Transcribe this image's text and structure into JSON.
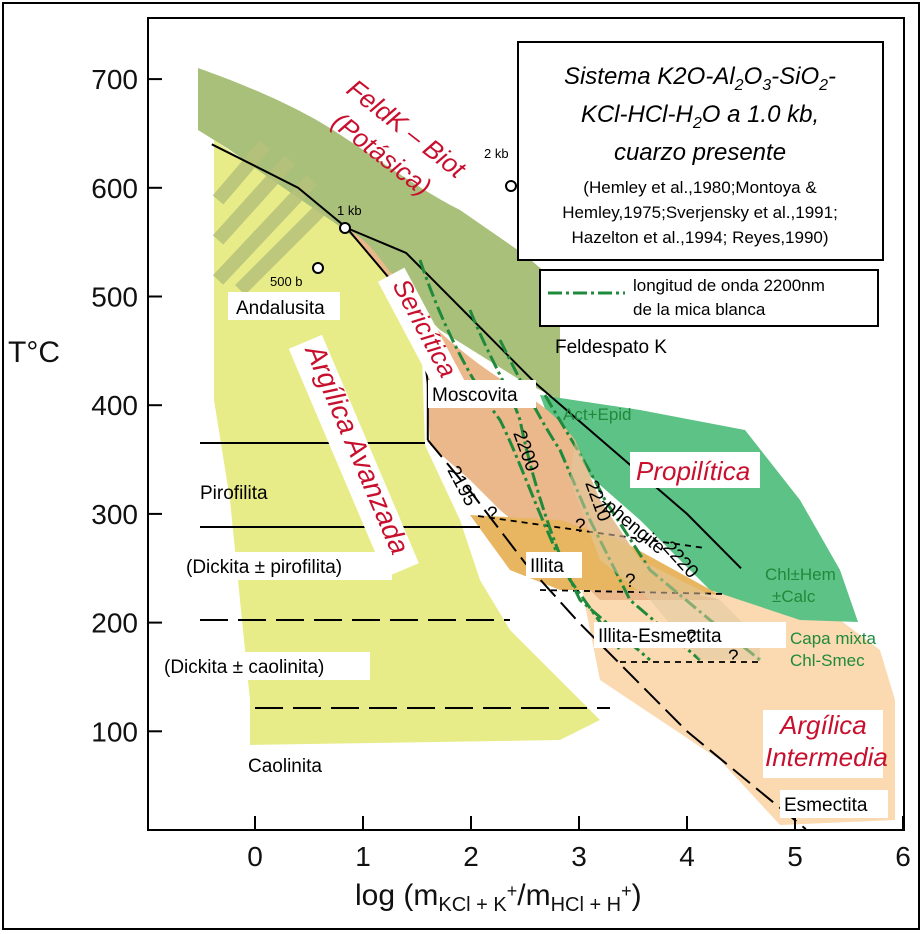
{
  "chart_data": {
    "type": "area",
    "title_lines": [
      "Sistema K2O-Al2O3-SiO2-",
      "KCl-HCl-H2O a 1.0 kb,",
      "cuarzo presente"
    ],
    "references": [
      "(Hemley et al.,1980;Montoya &",
      "Hemley,1975;Sverjensky et al.,1991;",
      "Hazelton et al.,1994; Reyes,1990)"
    ],
    "ylabel": "T°C",
    "xlabel": "log (mKCl + K+/mHCl + H+)",
    "xlim": [
      -1,
      6
    ],
    "ylim": [
      0,
      750
    ],
    "x_ticks": [
      "0",
      "1",
      "2",
      "3",
      "4",
      "5",
      "6"
    ],
    "y_ticks": [
      "100",
      "200",
      "300",
      "400",
      "500",
      "600",
      "700"
    ],
    "legend": {
      "label_line1": "longitud de onda 2200nm",
      "label_line2": "de la mica blanca",
      "color": "#1f8a3c"
    },
    "zones": [
      {
        "name": "FeldK – Biot",
        "name2": "(Potásica)",
        "color": "#a9c07a"
      },
      {
        "name": "Sericítica",
        "color": "#eab88a"
      },
      {
        "name": "Argílica Avanzada",
        "color": "#e8ec88"
      },
      {
        "name": "Propilítica",
        "color": "#5cc285"
      },
      {
        "name": "Argílica",
        "name2": "Intermedia",
        "color": "#fbd9b1"
      }
    ],
    "minerals": [
      "Andalusita",
      "Feldespato K",
      "Moscovita",
      "Pirofilita",
      "(Dickita ± pirofilita)",
      "(Dickita ± caolinita)",
      "Caolinita",
      "Illita",
      "Illita-Esmectita",
      "Esmectita"
    ],
    "green_labels": [
      "Act+Epid",
      "Chl±Hem",
      "±Calc",
      "Capa mixta",
      "Chl-Smec"
    ],
    "wavelength_labels": [
      "2195",
      "2200",
      "2210",
      "2220",
      "phengite"
    ],
    "pressure_labels": [
      "2 kb",
      "1 kb",
      "500 b"
    ],
    "question_marks": [
      "?",
      "?",
      "?",
      "?",
      "?"
    ],
    "boundaries": {
      "main_kfs_mica": [
        [
          -0.4,
          640
        ],
        [
          0.4,
          600
        ],
        [
          0.85,
          563
        ],
        [
          1.4,
          540
        ],
        [
          2.0,
          480
        ],
        [
          2.6,
          420
        ],
        [
          3.3,
          360
        ],
        [
          4.0,
          300
        ],
        [
          4.5,
          250
        ]
      ],
      "and_mica": [
        [
          0.85,
          563
        ],
        [
          1.3,
          510
        ],
        [
          1.55,
          460
        ],
        [
          1.6,
          420
        ],
        [
          1.6,
          368
        ]
      ],
      "mica_illite": [
        [
          1.6,
          368
        ],
        [
          2.0,
          320
        ],
        [
          2.5,
          255
        ],
        [
          3.0,
          200
        ],
        [
          3.5,
          150
        ],
        [
          4.0,
          100
        ],
        [
          5.1,
          10
        ]
      ]
    }
  }
}
